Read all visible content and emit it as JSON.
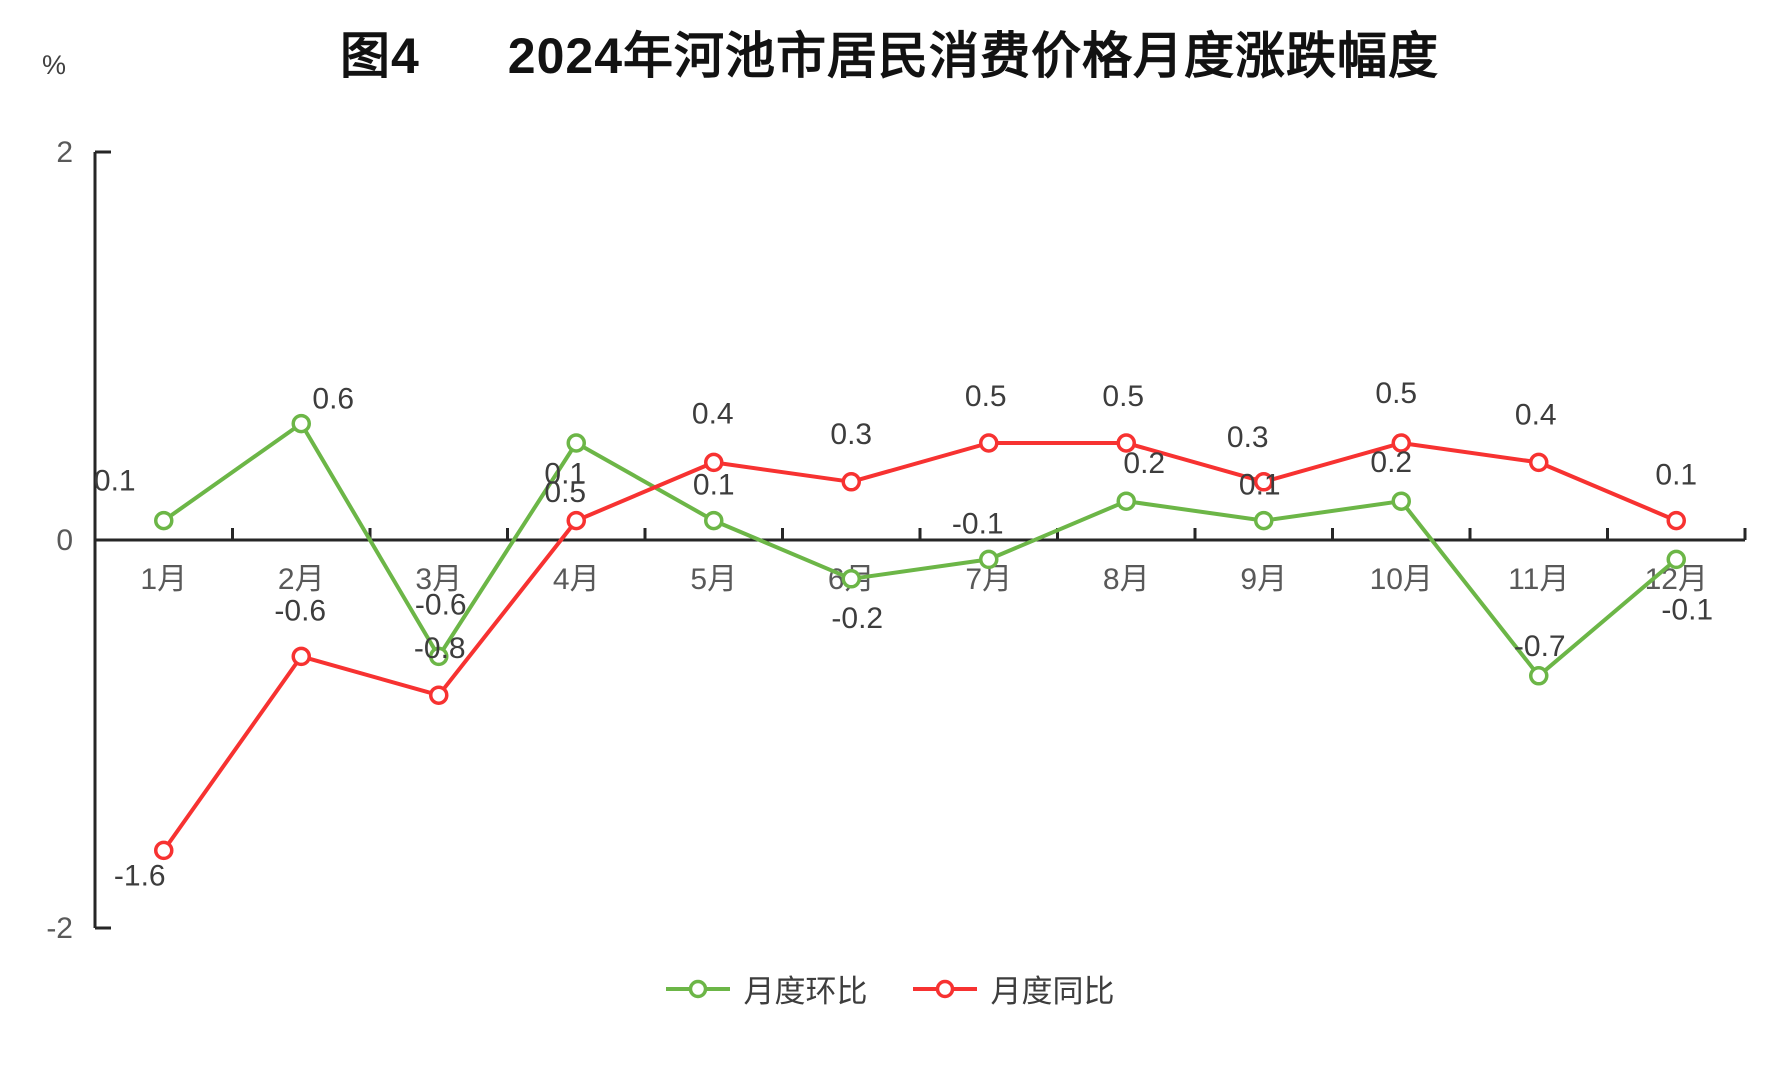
{
  "figure": {
    "title_prefix": "图4",
    "title_main": "2024年河池市居民消费价格月度涨跌幅度",
    "unit_label": "%"
  },
  "chart_data": {
    "type": "line",
    "title": "图4 2024年河池市居民消费价格月度涨跌幅度",
    "xlabel": "",
    "ylabel": "%",
    "categories": [
      "1月",
      "2月",
      "3月",
      "4月",
      "5月",
      "6月",
      "7月",
      "8月",
      "9月",
      "10月",
      "11月",
      "12月"
    ],
    "series": [
      {
        "id": "mom",
        "name": "月度环比",
        "color": "#6CB647",
        "values": [
          0.1,
          0.6,
          -0.6,
          0.5,
          0.1,
          -0.2,
          -0.1,
          0.2,
          0.1,
          0.2,
          -0.7,
          -0.1
        ]
      },
      {
        "id": "yoy",
        "name": "月度同比",
        "color": "#F73231",
        "values": [
          -1.6,
          -0.6,
          -0.8,
          0.1,
          0.4,
          0.3,
          0.5,
          0.5,
          0.3,
          0.5,
          0.4,
          0.1
        ]
      }
    ],
    "ylim": [
      -2,
      2
    ],
    "yticks": [
      2,
      0,
      -2
    ],
    "grid": false,
    "legend_position": "bottom",
    "marker": "circle-open",
    "data_labels": true
  }
}
